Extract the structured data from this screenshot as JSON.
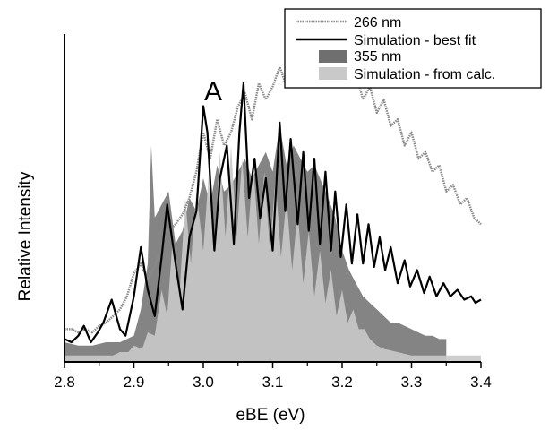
{
  "chart_data": {
    "type": "line",
    "panel_label": "A",
    "xlabel": "eBE (eV)",
    "ylabel": "Relative Intensity",
    "xlim": [
      2.8,
      3.4
    ],
    "ylim": [
      0,
      1
    ],
    "x_ticks": [
      "2.8",
      "2.9",
      "3.0",
      "3.1",
      "3.2",
      "3.3",
      "3.4"
    ],
    "grid": false,
    "legend_position": "top-right",
    "colors": {
      "exp_266": "#8a8a8a",
      "sim_best": "#000000",
      "exp_355": "#6f6f6f",
      "sim_calc": "#c9c9c9"
    },
    "legend": [
      {
        "label": "266 nm",
        "key": "exp_266"
      },
      {
        "label": "Simulation - best fit",
        "key": "sim_best"
      },
      {
        "label": "355 nm",
        "key": "exp_355"
      },
      {
        "label": "Simulation - from calc.",
        "key": "sim_calc"
      }
    ],
    "series": [
      {
        "name": "266 nm",
        "style": "dotted-line",
        "x": [
          2.8,
          2.81,
          2.82,
          2.83,
          2.84,
          2.85,
          2.86,
          2.87,
          2.88,
          2.89,
          2.9,
          2.91,
          2.92,
          2.93,
          2.94,
          2.95,
          2.96,
          2.97,
          2.98,
          2.99,
          3.0,
          3.01,
          3.02,
          3.03,
          3.04,
          3.05,
          3.06,
          3.07,
          3.08,
          3.09,
          3.1,
          3.11,
          3.12,
          3.13,
          3.14,
          3.15,
          3.16,
          3.17,
          3.18,
          3.19,
          3.2,
          3.21,
          3.22,
          3.23,
          3.24,
          3.25,
          3.26,
          3.27,
          3.28,
          3.29,
          3.3,
          3.31,
          3.32,
          3.33,
          3.34,
          3.35,
          3.36,
          3.37,
          3.38,
          3.39,
          3.4
        ],
        "y": [
          0.1,
          0.1,
          0.09,
          0.1,
          0.09,
          0.11,
          0.12,
          0.14,
          0.16,
          0.2,
          0.27,
          0.3,
          0.25,
          0.29,
          0.36,
          0.4,
          0.42,
          0.45,
          0.5,
          0.58,
          0.7,
          0.62,
          0.74,
          0.66,
          0.7,
          0.78,
          0.82,
          0.74,
          0.85,
          0.8,
          0.84,
          0.9,
          0.84,
          0.88,
          0.86,
          0.92,
          0.88,
          0.9,
          0.86,
          0.84,
          0.9,
          0.85,
          0.88,
          0.8,
          0.84,
          0.76,
          0.8,
          0.72,
          0.74,
          0.66,
          0.7,
          0.62,
          0.64,
          0.58,
          0.6,
          0.52,
          0.54,
          0.48,
          0.5,
          0.44,
          0.42
        ]
      },
      {
        "name": "Simulation - best fit",
        "style": "solid-line",
        "x": [
          2.8,
          2.81,
          2.82,
          2.828,
          2.838,
          2.848,
          2.856,
          2.868,
          2.88,
          2.888,
          2.9,
          2.91,
          2.92,
          2.93,
          2.94,
          2.948,
          2.96,
          2.97,
          2.98,
          2.99,
          3.0,
          3.006,
          3.016,
          3.024,
          3.034,
          3.044,
          3.052,
          3.058,
          3.066,
          3.074,
          3.082,
          3.09,
          3.1,
          3.11,
          3.118,
          3.126,
          3.136,
          3.144,
          3.152,
          3.16,
          3.168,
          3.176,
          3.184,
          3.19,
          3.198,
          3.206,
          3.214,
          3.222,
          3.23,
          3.238,
          3.246,
          3.254,
          3.262,
          3.27,
          3.28,
          3.29,
          3.298,
          3.308,
          3.318,
          3.326,
          3.336,
          3.346,
          3.356,
          3.366,
          3.376,
          3.386,
          3.392,
          3.4
        ],
        "y": [
          0.07,
          0.06,
          0.08,
          0.11,
          0.06,
          0.09,
          0.12,
          0.19,
          0.1,
          0.08,
          0.2,
          0.35,
          0.22,
          0.14,
          0.32,
          0.48,
          0.3,
          0.16,
          0.38,
          0.46,
          0.78,
          0.7,
          0.34,
          0.56,
          0.66,
          0.36,
          0.7,
          0.85,
          0.5,
          0.62,
          0.44,
          0.56,
          0.34,
          0.73,
          0.46,
          0.68,
          0.42,
          0.64,
          0.4,
          0.62,
          0.36,
          0.58,
          0.34,
          0.52,
          0.32,
          0.48,
          0.3,
          0.45,
          0.3,
          0.42,
          0.29,
          0.38,
          0.28,
          0.35,
          0.24,
          0.31,
          0.23,
          0.28,
          0.21,
          0.26,
          0.2,
          0.24,
          0.2,
          0.22,
          0.19,
          0.2,
          0.18,
          0.19
        ]
      },
      {
        "name": "355 nm",
        "style": "filled-area",
        "x": [
          2.8,
          2.82,
          2.84,
          2.86,
          2.88,
          2.9,
          2.91,
          2.92,
          2.925,
          2.93,
          2.94,
          2.95,
          2.96,
          2.97,
          2.98,
          2.99,
          3.0,
          3.01,
          3.02,
          3.03,
          3.04,
          3.05,
          3.06,
          3.07,
          3.08,
          3.09,
          3.1,
          3.11,
          3.12,
          3.13,
          3.14,
          3.15,
          3.16,
          3.17,
          3.18,
          3.19,
          3.2,
          3.21,
          3.22,
          3.23,
          3.24,
          3.25,
          3.26,
          3.27,
          3.28,
          3.29,
          3.3,
          3.31,
          3.32,
          3.33,
          3.34,
          3.35
        ],
        "y": [
          0.06,
          0.05,
          0.05,
          0.06,
          0.06,
          0.08,
          0.16,
          0.3,
          0.66,
          0.44,
          0.48,
          0.52,
          0.36,
          0.4,
          0.5,
          0.46,
          0.56,
          0.48,
          0.6,
          0.52,
          0.54,
          0.58,
          0.62,
          0.56,
          0.6,
          0.64,
          0.58,
          0.72,
          0.6,
          0.66,
          0.62,
          0.58,
          0.6,
          0.55,
          0.5,
          0.44,
          0.34,
          0.28,
          0.24,
          0.2,
          0.18,
          0.16,
          0.14,
          0.12,
          0.12,
          0.11,
          0.1,
          0.09,
          0.08,
          0.08,
          0.07,
          0.07
        ]
      },
      {
        "name": "Simulation - from calc.",
        "style": "filled-area",
        "x": [
          2.8,
          2.87,
          2.88,
          2.892,
          2.9,
          2.912,
          2.92,
          2.93,
          2.94,
          2.948,
          2.956,
          2.966,
          2.974,
          2.982,
          2.99,
          3.0,
          3.008,
          3.016,
          3.024,
          3.032,
          3.04,
          3.048,
          3.056,
          3.064,
          3.072,
          3.08,
          3.088,
          3.096,
          3.104,
          3.112,
          3.12,
          3.128,
          3.136,
          3.144,
          3.152,
          3.16,
          3.168,
          3.176,
          3.184,
          3.192,
          3.2,
          3.208,
          3.216,
          3.224,
          3.232,
          3.24,
          3.25,
          3.26,
          3.28,
          3.3,
          3.4
        ],
        "y": [
          0.02,
          0.02,
          0.03,
          0.03,
          0.05,
          0.04,
          0.09,
          0.08,
          0.22,
          0.14,
          0.38,
          0.22,
          0.5,
          0.3,
          0.52,
          0.34,
          0.58,
          0.36,
          0.64,
          0.38,
          0.66,
          0.38,
          0.62,
          0.38,
          0.6,
          0.36,
          0.58,
          0.34,
          0.56,
          0.32,
          0.5,
          0.28,
          0.46,
          0.24,
          0.4,
          0.2,
          0.34,
          0.18,
          0.28,
          0.14,
          0.22,
          0.12,
          0.16,
          0.1,
          0.1,
          0.07,
          0.05,
          0.04,
          0.03,
          0.02,
          0.02
        ]
      }
    ]
  }
}
